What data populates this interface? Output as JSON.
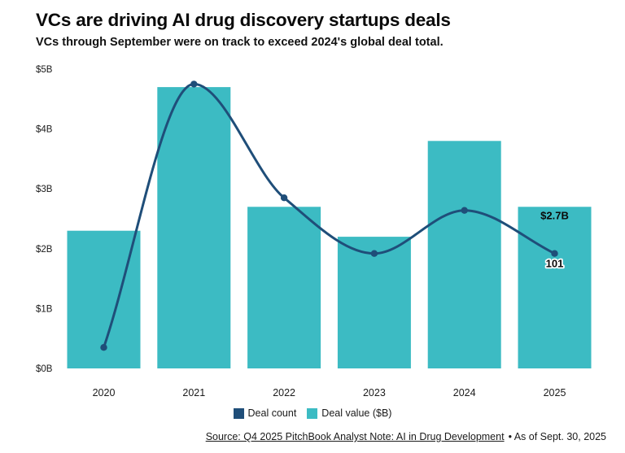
{
  "page": {
    "title": "VCs are driving AI drug discovery startups deals",
    "subtitle": "VCs through September were on track to exceed 2024's global deal total.",
    "source_link": "Source: Q4 2025 PitchBook Analyst Note: AI in Drug Development",
    "source_suffix": "• As of Sept. 30, 2025"
  },
  "colors": {
    "bar": "#3cbbc3",
    "line": "#1f4e79",
    "text": "#1a1a1a"
  },
  "legend": [
    {
      "label": "Deal count",
      "color": "#1f4e79"
    },
    {
      "label": "Deal value ($B)",
      "color": "#3cbbc3"
    }
  ],
  "chart_data": {
    "type": "bar",
    "subtype": "bar+line combo",
    "categories": [
      "2020",
      "2021",
      "2022",
      "2023",
      "2024",
      "2025"
    ],
    "series": [
      {
        "name": "Deal value ($B)",
        "type": "bar",
        "color": "#3cbbc3",
        "values": [
          2.3,
          4.7,
          2.7,
          2.2,
          3.8,
          2.7
        ]
      },
      {
        "name": "Deal count",
        "type": "line",
        "color": "#1f4e79",
        "axis": "hidden secondary axis",
        "values_on_value_axis_scale": [
          0.35,
          4.75,
          2.85,
          1.92,
          2.64,
          1.92
        ],
        "labeled_point": {
          "category": "2025",
          "label": "101"
        }
      }
    ],
    "y_axis": {
      "tick_labels": [
        "$0B",
        "$1B",
        "$2B",
        "$3B",
        "$4B",
        "$5B"
      ],
      "tick_values": [
        0,
        1,
        2,
        3,
        4,
        5
      ],
      "range": [
        0,
        5
      ]
    },
    "grid": false,
    "legend_position": "bottom center",
    "bar_label": {
      "category": "2025",
      "text": "$2.7B"
    },
    "line_label": {
      "category": "2025",
      "text": "101"
    }
  }
}
